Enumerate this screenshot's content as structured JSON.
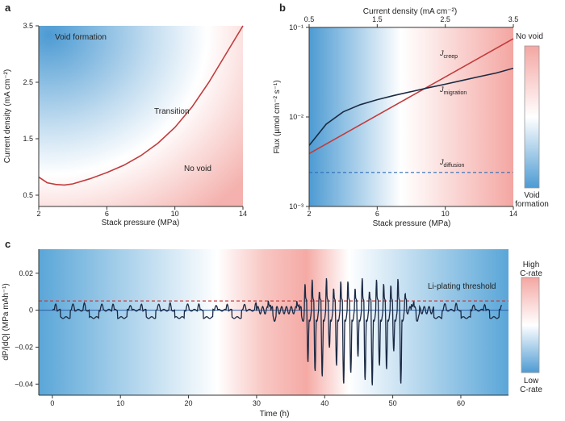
{
  "chart_data": [
    {
      "panel": "a",
      "type": "line",
      "xlabel": "Stack pressure (MPa)",
      "ylabel": "Current density (mA cm⁻²)",
      "xlim": [
        2,
        14
      ],
      "ylim": [
        0.3,
        3.5
      ],
      "xticks": [
        "2",
        "6",
        "10",
        "14"
      ],
      "yticks": [
        "0.5",
        "1.5",
        "2.5",
        "3.5"
      ],
      "annotations": [
        "Void formation",
        "Transition",
        "No void"
      ],
      "series": [
        {
          "x": [
            2,
            2.5,
            3,
            3.5,
            4,
            5,
            6,
            7,
            8,
            9,
            10,
            11,
            12,
            13,
            14
          ],
          "y": [
            0.82,
            0.72,
            0.69,
            0.68,
            0.7,
            0.79,
            0.9,
            1.03,
            1.2,
            1.42,
            1.7,
            2.06,
            2.5,
            3.0,
            3.5
          ]
        }
      ],
      "colors": {
        "void": "#5aa6d8",
        "novoid": "#f2a7a3",
        "line": "#c23b3b"
      }
    },
    {
      "panel": "b",
      "type": "line",
      "xlabel": "Stack pressure (MPa)",
      "x2label": "Current density (mA cm⁻²)",
      "ylabel": "Flux (µmol cm⁻² s⁻¹)",
      "xlim": [
        2,
        14
      ],
      "x2lim": [
        0.5,
        3.5
      ],
      "ylim": [
        0.001,
        0.1
      ],
      "yscale": "log",
      "xticks": [
        "2",
        "6",
        "10",
        "14"
      ],
      "x2ticks": [
        "0.5",
        "1.5",
        "2.5",
        "3.5"
      ],
      "yticks": [
        "10⁻³",
        "10⁻²",
        "10⁻¹"
      ],
      "series": [
        {
          "name": "J_creep",
          "x": [
            2,
            14
          ],
          "y": [
            0.0039,
            0.075
          ],
          "color": "#c23b3b",
          "style": "solid"
        },
        {
          "name": "J_migration",
          "x": [
            2,
            3,
            4,
            5,
            6,
            7,
            8,
            9,
            10,
            11,
            12,
            13,
            14
          ],
          "y": [
            0.0048,
            0.0083,
            0.0114,
            0.0137,
            0.0156,
            0.0174,
            0.0192,
            0.0212,
            0.0232,
            0.0256,
            0.0282,
            0.031,
            0.035
          ],
          "color": "#1b2a44",
          "style": "solid"
        },
        {
          "name": "J_diffusion",
          "x": [
            2,
            14
          ],
          "y": [
            0.0024,
            0.0024
          ],
          "color": "#2f6db5",
          "style": "dashed"
        }
      ],
      "annotations": [
        "No void",
        "Void formation"
      ]
    },
    {
      "panel": "c",
      "type": "line",
      "xlabel": "Time (h)",
      "ylabel": "dP/|dQ| (MPa mAh⁻¹)",
      "xlim": [
        -2,
        67
      ],
      "ylim": [
        -0.046,
        0.033
      ],
      "xticks": [
        "0",
        "10",
        "20",
        "30",
        "40",
        "50",
        "60"
      ],
      "yticks": [
        "0.02",
        "0",
        "−0.02",
        "−0.04"
      ],
      "threshold": {
        "label": "Li-plating threshold",
        "y": 0.005
      },
      "annotations": [
        "High C-rate",
        "Low C-rate"
      ]
    }
  ],
  "labels": {
    "panel_a": "a",
    "panel_b": "b",
    "panel_c": "c",
    "b_superscripts": {
      "creep": "creep",
      "migration": "migration",
      "diffusion": "diffusion"
    }
  }
}
